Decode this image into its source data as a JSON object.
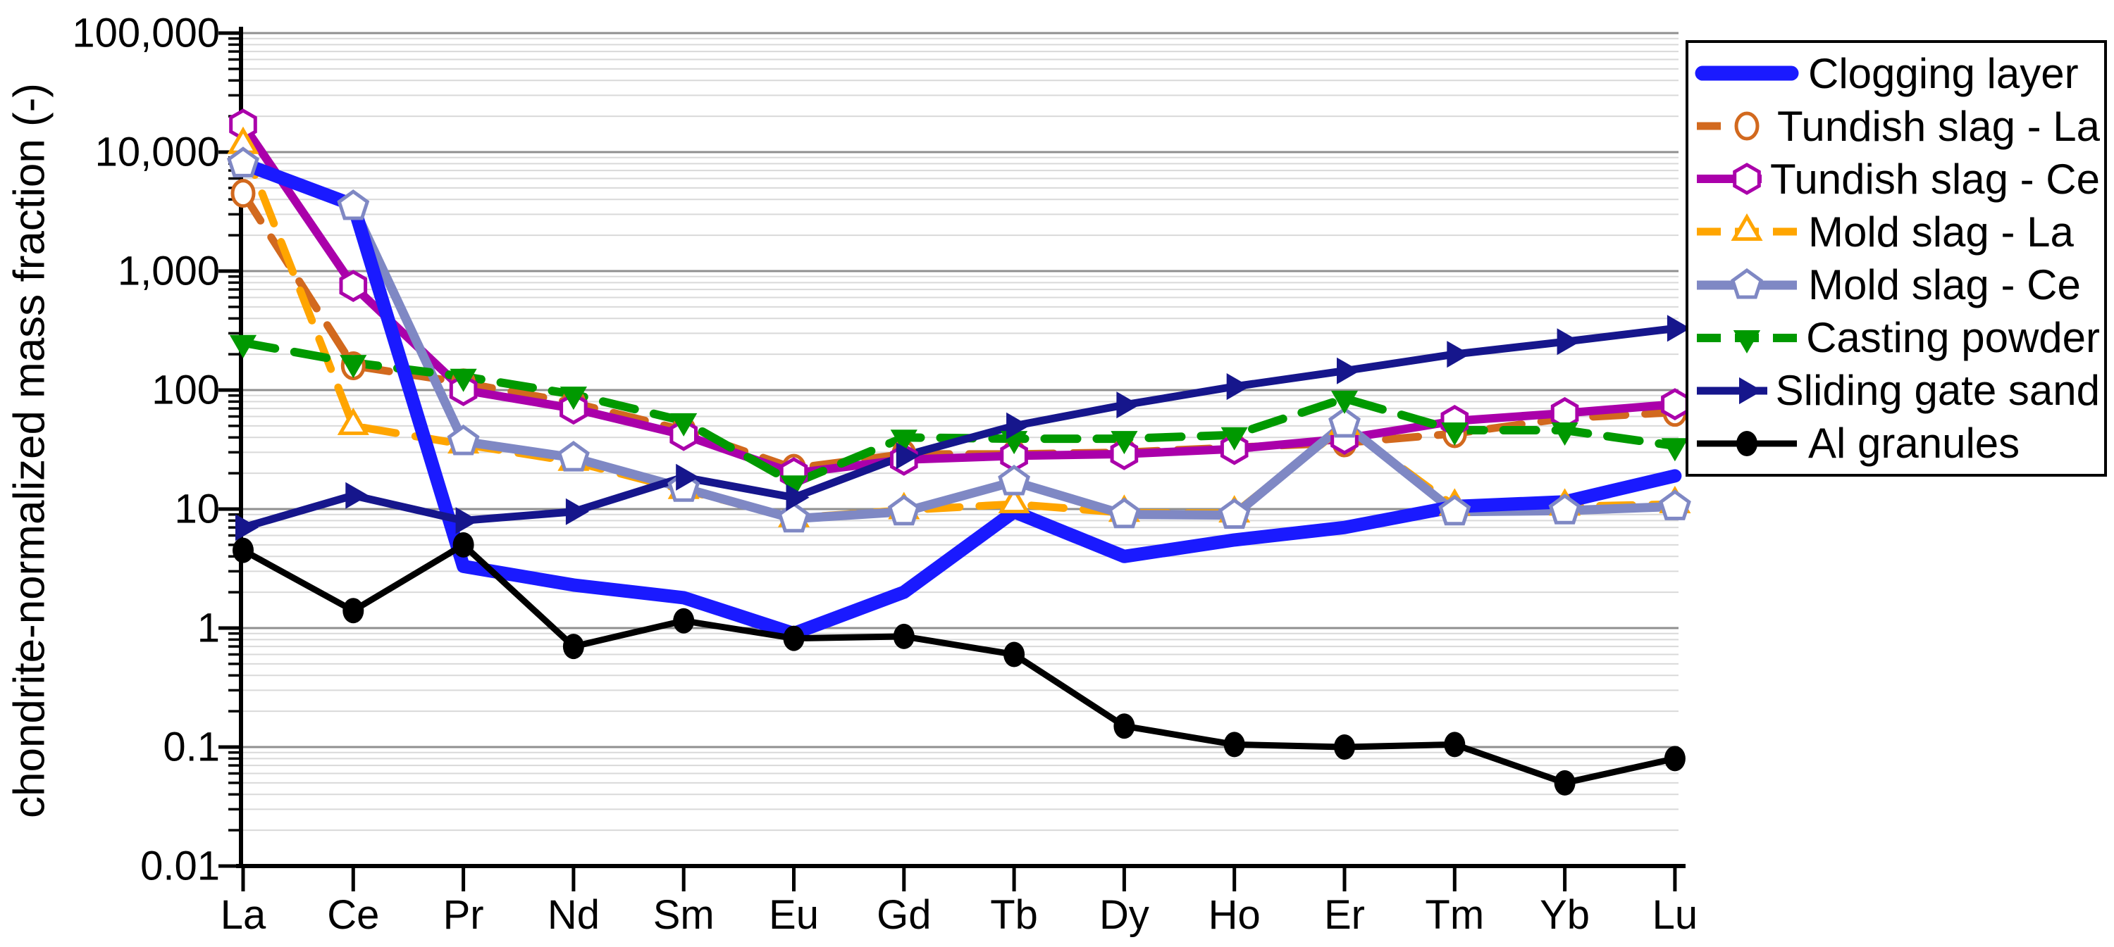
{
  "figure": {
    "background": "#ffffff",
    "axis_color": "#000000",
    "major_grid_color": "#8f8f8f",
    "minor_grid_color": "#d9d9d9"
  },
  "chart_data": {
    "type": "line",
    "title": "",
    "xlabel": "",
    "ylabel": "chondrite-normalized mass fraction (-)",
    "x_scale": "category",
    "y_scale": "log",
    "ylim": [
      0.01,
      100000
    ],
    "grid": "log major and minor horizontal gridlines",
    "legend_position": "top-right",
    "y_tick_labels": [
      "100,000",
      "10,000",
      "1,000",
      "100",
      "10",
      "1",
      "0.1",
      "0.01"
    ],
    "y_tick_values": [
      100000,
      10000,
      1000,
      100,
      10,
      1,
      0.1,
      0.01
    ],
    "categories": [
      "La",
      "Ce",
      "Pr",
      "Nd",
      "Sm",
      "Eu",
      "Gd",
      "Tb",
      "Dy",
      "Ho",
      "Er",
      "Tm",
      "Yb",
      "Lu"
    ],
    "series": [
      {
        "name": "Clogging layer",
        "color": "#1a1aff",
        "marker": "none",
        "line_style": "solid",
        "line_width": 19,
        "values": [
          8000,
          3600,
          3.3,
          2.3,
          1.8,
          0.9,
          2.0,
          9.5,
          4.0,
          5.5,
          7.0,
          10.5,
          11.5,
          19
        ]
      },
      {
        "name": "Tundish slag - La",
        "color": "#d2691e",
        "marker": "circle-open",
        "line_style": "dashed",
        "line_width": 11,
        "values": [
          4500,
          160,
          115,
          78,
          46,
          22,
          29,
          29,
          30,
          33,
          36,
          43,
          58,
          65
        ]
      },
      {
        "name": "Tundish slag - Ce",
        "color": "#aa00aa",
        "marker": "hexagon-open",
        "line_style": "solid",
        "line_width": 12,
        "values": [
          17000,
          750,
          100,
          70,
          42,
          20,
          26,
          28,
          29,
          32,
          39,
          55,
          64,
          76
        ]
      },
      {
        "name": "Mold slag - La",
        "color": "#ffa500",
        "marker": "triangle-up-open",
        "line_style": "dashed",
        "line_width": 11,
        "values": [
          11500,
          50,
          35,
          25,
          14.5,
          8.4,
          9.8,
          11,
          9.3,
          9.2,
          50,
          10.5,
          10.5,
          11
        ]
      },
      {
        "name": "Mold slag - Ce",
        "color": "#7f88c4",
        "marker": "pentagon-open",
        "line_style": "solid",
        "line_width": 13,
        "values": [
          8000,
          3500,
          37,
          27,
          15,
          8.3,
          9.5,
          17,
          9.0,
          8.9,
          52,
          9.5,
          9.7,
          10.5
        ]
      },
      {
        "name": "Casting powder",
        "color": "#009900",
        "marker": "triangle-down-filled",
        "line_style": "dashed",
        "line_width": 12,
        "values": [
          250,
          170,
          130,
          92,
          55,
          16.5,
          40,
          39,
          39,
          42,
          85,
          46,
          46,
          34
        ]
      },
      {
        "name": "Sliding gate sand",
        "color": "#16168c",
        "marker": "triangle-right-filled",
        "line_style": "solid",
        "line_width": 11,
        "values": [
          7,
          13,
          8,
          9.5,
          18.5,
          12.5,
          28,
          50,
          75,
          107,
          145,
          200,
          255,
          330
        ]
      },
      {
        "name": "Al granules",
        "color": "#000000",
        "marker": "circle-filled",
        "line_style": "solid",
        "line_width": 9,
        "values": [
          4.5,
          1.4,
          5.0,
          0.7,
          1.15,
          0.82,
          0.85,
          0.6,
          0.15,
          0.105,
          0.1,
          0.105,
          0.05,
          0.08
        ]
      }
    ],
    "draw_order": [
      1,
      2,
      3,
      4,
      5,
      0,
      6,
      7
    ]
  }
}
